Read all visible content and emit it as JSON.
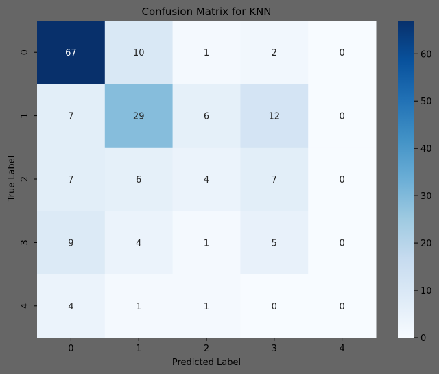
{
  "chart_data": {
    "type": "heatmap",
    "title": "Confusion Matrix for KNN",
    "xlabel": "Predicted Label",
    "ylabel": "True Label",
    "x_categories": [
      "0",
      "1",
      "2",
      "3",
      "4"
    ],
    "y_categories": [
      "0",
      "1",
      "2",
      "3",
      "4"
    ],
    "values": [
      [
        67,
        10,
        1,
        2,
        0
      ],
      [
        7,
        29,
        6,
        12,
        0
      ],
      [
        7,
        6,
        4,
        7,
        0
      ],
      [
        9,
        4,
        1,
        5,
        0
      ],
      [
        4,
        1,
        1,
        0,
        0
      ]
    ],
    "colorbar": {
      "min": 0,
      "max": 67,
      "ticks": [
        0,
        10,
        20,
        30,
        40,
        50,
        60
      ],
      "colormap": "Blues"
    },
    "colors": {
      "figure_background": "#666666",
      "dark_text": "#262626",
      "light_text": "#ffffff"
    }
  }
}
